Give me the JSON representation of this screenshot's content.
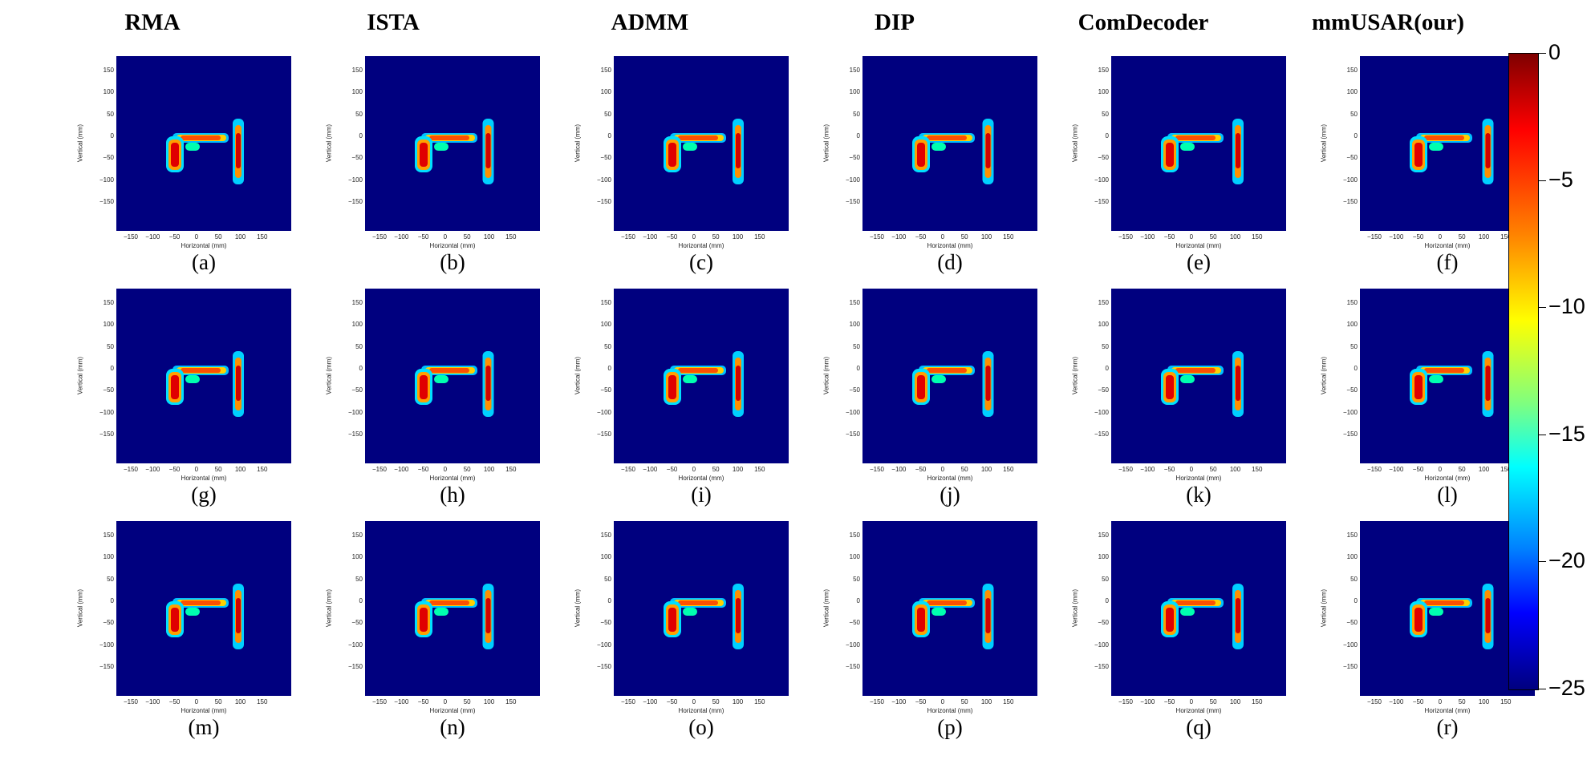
{
  "columns": [
    "RMA",
    "ISTA",
    "ADMM",
    "DIP",
    "ComDecoder",
    "mmUSAR(our)"
  ],
  "captions": [
    "(a)",
    "(b)",
    "(c)",
    "(d)",
    "(e)",
    "(f)",
    "(g)",
    "(h)",
    "(i)",
    "(j)",
    "(k)",
    "(l)",
    "(m)",
    "(n)",
    "(o)",
    "(p)",
    "(q)",
    "(r)"
  ],
  "axis": {
    "xlabel": "Horizontal (mm)",
    "ylabel": "Vertical (mm)",
    "xticks": [
      "−150",
      "−100",
      "−50",
      "0",
      "50",
      "100",
      "150"
    ],
    "yticks": [
      "150",
      "100",
      "50",
      "0",
      "−50",
      "−100",
      "−150"
    ]
  },
  "colorbar": {
    "labels": [
      "0",
      "−5",
      "−10",
      "−15",
      "−20",
      "−25"
    ],
    "colormap": "jet"
  },
  "colors": {
    "background": "#00007f"
  }
}
